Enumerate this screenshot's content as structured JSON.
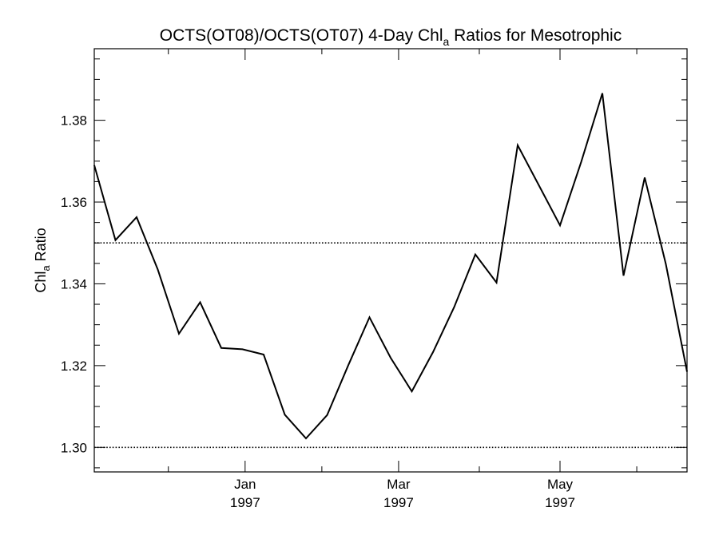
{
  "chart_data": {
    "type": "line",
    "title_main": "OCTS(OT08)/OCTS(OT07) 4-Day Chl",
    "title_sub": "a",
    "title_rest": " Ratios for Mesotrophic",
    "ylabel_main": "Chl",
    "ylabel_sub": "a",
    "ylabel_rest": " Ratio",
    "ylim": [
      1.294,
      1.3975
    ],
    "y_ticks": [
      "1.30",
      "1.32",
      "1.34",
      "1.36",
      "1.38"
    ],
    "y_tick_values": [
      1.3,
      1.32,
      1.34,
      1.36,
      1.38
    ],
    "x_ticks": [
      {
        "month": "Jan",
        "year": "1997",
        "day": 32
      },
      {
        "month": "Mar",
        "year": "1997",
        "day": 90
      },
      {
        "month": "May",
        "year": "1997",
        "day": 151
      }
    ],
    "xlim": [
      -25,
      199
    ],
    "reference_lines": [
      1.35,
      1.3
    ],
    "grid": false,
    "series": [
      {
        "x": [
          -25,
          -17,
          -9,
          -1,
          7,
          15,
          23,
          31,
          39,
          47,
          55,
          63,
          71,
          79,
          87,
          95,
          103,
          111,
          119,
          127,
          135,
          143,
          151,
          159,
          167,
          175,
          183,
          191,
          199
        ],
        "values": [
          1.369,
          1.3507,
          1.3563,
          1.3435,
          1.3278,
          1.3355,
          1.3243,
          1.324,
          1.3227,
          1.308,
          1.3022,
          1.3079,
          1.3201,
          1.3318,
          1.3219,
          1.3137,
          1.3233,
          1.3343,
          1.3472,
          1.3403,
          1.3739,
          1.3641,
          1.3543,
          1.3698,
          1.3866,
          1.342,
          1.366,
          1.3448,
          1.3185
        ]
      }
    ]
  }
}
